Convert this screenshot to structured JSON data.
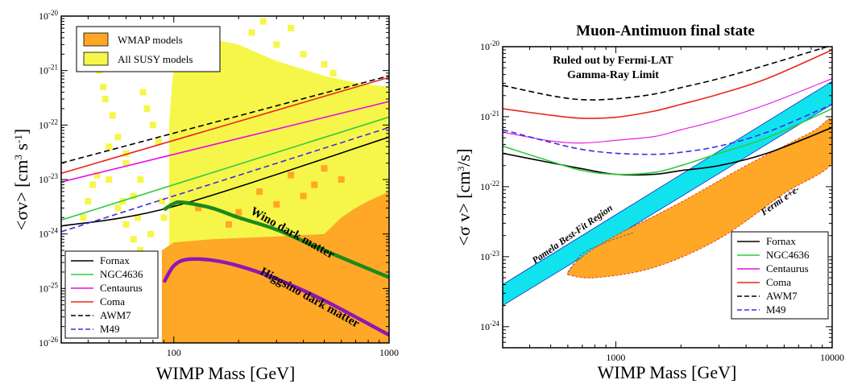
{
  "chart_data": [
    {
      "type": "line",
      "title": "",
      "xlabel": "WIMP Mass [GeV]",
      "ylabel": "<σv>  [cm³ s⁻¹]",
      "xscale": "log",
      "yscale": "log",
      "xlim": [
        30,
        1000
      ],
      "ylim": [
        1e-26,
        1e-20
      ],
      "x_tick_labels": [
        {
          "x": 100,
          "label": "100"
        },
        {
          "x": 1000,
          "label": "1000"
        }
      ],
      "y_tick_labels": [
        {
          "y": 1e-26,
          "base": "10",
          "exp": "-26"
        },
        {
          "y": 1e-25,
          "base": "10",
          "exp": "-25"
        },
        {
          "y": 1e-24,
          "base": "10",
          "exp": "-24"
        },
        {
          "y": 1e-23,
          "base": "10",
          "exp": "-23"
        },
        {
          "y": 1e-22,
          "base": "10",
          "exp": "-22"
        },
        {
          "y": 1e-21,
          "base": "10",
          "exp": "-21"
        },
        {
          "y": 1e-20,
          "base": "10",
          "exp": "-20"
        }
      ],
      "legend_top": {
        "placement": "top-left",
        "entries": [
          {
            "name": "WMAP models",
            "color": "#ffa726"
          },
          {
            "name": "All SUSY models",
            "color": "#f6f64a"
          }
        ]
      },
      "regions": [
        {
          "name": "WMAP models",
          "color": "#ffa726",
          "upper_edge": [
            [
              88,
              5e-25
            ],
            [
              100,
              7e-25
            ],
            [
              150,
              8e-25
            ],
            [
              300,
              9e-25
            ],
            [
              500,
              1e-24
            ],
            [
              600,
              2e-24
            ],
            [
              700,
              3e-24
            ],
            [
              800,
              4e-24
            ],
            [
              1000,
              6e-24
            ]
          ]
        },
        {
          "name": "All SUSY models",
          "color": "#f6f64a",
          "upper_edge": [
            [
              95,
              1e-22
            ],
            [
              100,
              1.5e-21
            ],
            [
              140,
              4e-21
            ],
            [
              200,
              3e-21
            ],
            [
              300,
              1.5e-21
            ],
            [
              500,
              8e-22
            ],
            [
              700,
              6e-22
            ],
            [
              1000,
              5e-22
            ]
          ]
        }
      ],
      "series": [
        {
          "name": "Fornax",
          "color": "#000000",
          "dash": "solid",
          "x": [
            30,
            100,
            1000
          ],
          "y": [
            1.4e-24,
            3.2e-24,
            6e-23
          ]
        },
        {
          "name": "NGC4636",
          "color": "#2ecc40",
          "dash": "solid",
          "x": [
            30,
            1000
          ],
          "y": [
            1.8e-24,
            1.4e-22
          ]
        },
        {
          "name": "Centaurus",
          "color": "#e60ee6",
          "dash": "solid",
          "x": [
            30,
            1000
          ],
          "y": [
            9e-24,
            2.7e-22
          ]
        },
        {
          "name": "Coma",
          "color": "#e8261f",
          "dash": "solid",
          "x": [
            30,
            1000
          ],
          "y": [
            1.3e-23,
            7.5e-22
          ]
        },
        {
          "name": "AWM7",
          "color": "#000000",
          "dash": "dashed",
          "x": [
            30,
            1000
          ],
          "y": [
            2e-23,
            8e-22
          ]
        },
        {
          "name": "M49",
          "color": "#3d2ee0",
          "dash": "dashed",
          "x": [
            30,
            1000
          ],
          "y": [
            1.1e-24,
            9e-23
          ]
        },
        {
          "name": "Wino dark matter",
          "color": "#1a8a1a",
          "dash": "solid",
          "x": [
            90,
            100,
            110,
            150,
            200,
            300,
            500,
            1000
          ],
          "y": [
            2.8e-24,
            3.6e-24,
            3.8e-24,
            3e-24,
            2e-24,
            1.2e-24,
            5e-25,
            1.6e-25
          ]
        },
        {
          "name": "Higgsino dark matter",
          "color": "#8e17b5",
          "dash": "solid",
          "x": [
            90,
            100,
            115,
            150,
            200,
            300,
            500,
            1000
          ],
          "y": [
            1.3e-25,
            2.6e-25,
            3.4e-25,
            3.3e-25,
            2.6e-25,
            1.5e-25,
            6e-26,
            1.4e-26
          ]
        }
      ],
      "legend_bottom": {
        "placement": "bottom-left",
        "entries": [
          "Fornax",
          "NGC4636",
          "Centaurus",
          "Coma",
          "AWM7",
          "M49"
        ]
      },
      "annotations": [
        {
          "text": "Wino dark matter",
          "color": "#1a8a1a"
        },
        {
          "text": "Higgsino dark matter",
          "color": "#8e17b5"
        }
      ]
    },
    {
      "type": "line",
      "title": "Muon-Antimuon final state",
      "xlabel": "WIMP Mass [GeV]",
      "ylabel": "<σ v>  [cm³/s]",
      "xscale": "log",
      "yscale": "log",
      "xlim": [
        300,
        10000
      ],
      "ylim": [
        5e-25,
        1e-20
      ],
      "x_tick_labels": [
        {
          "x": 1000,
          "label": "1000"
        },
        {
          "x": 10000,
          "label": "10000"
        }
      ],
      "y_tick_labels": [
        {
          "y": 1e-24,
          "base": "10",
          "exp": "-24"
        },
        {
          "y": 1e-23,
          "base": "10",
          "exp": "-23"
        },
        {
          "y": 1e-22,
          "base": "10",
          "exp": "-22"
        },
        {
          "y": 1e-21,
          "base": "10",
          "exp": "-21"
        },
        {
          "y": 1e-20,
          "base": "10",
          "exp": "-20"
        }
      ],
      "annotation_lines": [
        "Ruled out by Fermi-LAT",
        "Gamma-Ray Limit"
      ],
      "regions": [
        {
          "name": "Pamela Best-Fit Region",
          "color": "#10e3ee",
          "lower_edge": [
            [
              300,
              2e-24
            ],
            [
              10000,
              1.5e-21
            ]
          ],
          "upper_edge": [
            [
              300,
              4e-24
            ],
            [
              10000,
              3.2e-21
            ]
          ]
        },
        {
          "name": "Fermi e+e-",
          "color": "#ffa726",
          "boundary": [
            [
              600,
              5.5e-24
            ],
            [
              800,
              5e-24
            ],
            [
              1500,
              7e-24
            ],
            [
              3000,
              1.8e-23
            ],
            [
              6000,
              8e-23
            ],
            [
              10000,
              2.2e-22
            ],
            [
              10000,
              9e-22
            ],
            [
              8000,
              6e-22
            ],
            [
              4000,
              2e-22
            ],
            [
              2000,
              6e-23
            ],
            [
              1000,
              2e-23
            ],
            [
              700,
              1e-23
            ],
            [
              600,
              6e-24
            ]
          ]
        }
      ],
      "series": [
        {
          "name": "Fornax",
          "color": "#000000",
          "dash": "solid",
          "x": [
            300,
            500,
            700,
            1000,
            1500,
            2000,
            3000,
            5000,
            10000
          ],
          "y": [
            3e-22,
            2.2e-22,
            1.8e-22,
            1.5e-22,
            1.5e-22,
            1.7e-22,
            2e-22,
            3e-22,
            7e-22
          ]
        },
        {
          "name": "NGC4636",
          "color": "#2ecc40",
          "dash": "solid",
          "x": [
            300,
            500,
            700,
            1000,
            1500,
            2000,
            3000,
            5000,
            10000
          ],
          "y": [
            3.8e-22,
            2.3e-22,
            1.7e-22,
            1.5e-22,
            1.6e-22,
            2e-22,
            3e-22,
            5e-22,
            1.3e-21
          ]
        },
        {
          "name": "Centaurus",
          "color": "#e60ee6",
          "dash": "solid",
          "x": [
            300,
            500,
            700,
            1000,
            1500,
            2000,
            3000,
            5000,
            10000
          ],
          "y": [
            6e-22,
            4.5e-22,
            4.2e-22,
            4.6e-22,
            5.2e-22,
            6.5e-22,
            9e-22,
            1.5e-21,
            3.5e-21
          ]
        },
        {
          "name": "Coma",
          "color": "#e8261f",
          "dash": "solid",
          "x": [
            300,
            500,
            700,
            1000,
            1500,
            2000,
            3000,
            5000,
            10000
          ],
          "y": [
            1.3e-21,
            1.05e-21,
            9.5e-22,
            9.8e-22,
            1.2e-21,
            1.5e-21,
            2.1e-21,
            3.5e-21,
            9e-21
          ]
        },
        {
          "name": "AWM7",
          "color": "#000000",
          "dash": "dashed",
          "x": [
            300,
            500,
            700,
            1000,
            1500,
            2000,
            3000,
            5000,
            10000
          ],
          "y": [
            2.8e-21,
            2e-21,
            1.75e-21,
            1.8e-21,
            2.1e-21,
            2.6e-21,
            3.5e-21,
            5.5e-21,
            1.05e-20
          ]
        },
        {
          "name": "M49",
          "color": "#3d2ee0",
          "dash": "dashed",
          "x": [
            300,
            500,
            700,
            1000,
            1500,
            2000,
            3000,
            5000,
            10000
          ],
          "y": [
            6.5e-22,
            4.3e-22,
            3.4e-22,
            3e-22,
            2.9e-22,
            3.1e-22,
            3.8e-22,
            6e-22,
            1.5e-21
          ]
        }
      ],
      "legend": {
        "placement": "bottom-right",
        "entries": [
          "Fornax",
          "NGC4636",
          "Centaurus",
          "Coma",
          "AWM7",
          "M49"
        ]
      },
      "annotations": [
        {
          "text": "Pamela Best-Fit Region",
          "color": "#6a1bd8"
        },
        {
          "text": "Fermi e+e-",
          "color": "#d81d1d"
        }
      ]
    }
  ]
}
